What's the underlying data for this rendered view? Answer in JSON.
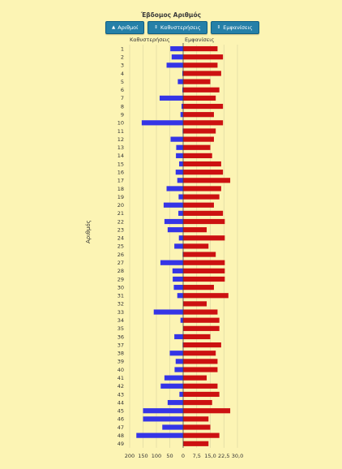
{
  "title": "Έβδομος Αριθμός",
  "buttons": {
    "numbers": {
      "label": "Αριθμοί",
      "icon": "sort-up-icon"
    },
    "delays": {
      "label": "Καθυστερήσεις",
      "icon": "sort-icon"
    },
    "appearances": {
      "label": "Εμφανίσεις",
      "icon": "sort-icon"
    }
  },
  "colors": {
    "delays": "#3535e6",
    "appearances": "#cc1111",
    "background": "#fcf4b4",
    "button": "#2580a8"
  },
  "chart_data": {
    "type": "bar",
    "orientation": "horizontal",
    "ylabel": "Αριθμός",
    "categories": [
      "1",
      "2",
      "3",
      "4",
      "5",
      "6",
      "7",
      "8",
      "9",
      "10",
      "11",
      "12",
      "13",
      "14",
      "15",
      "16",
      "17",
      "18",
      "19",
      "20",
      "21",
      "22",
      "23",
      "24",
      "25",
      "26",
      "27",
      "28",
      "29",
      "30",
      "31",
      "32",
      "33",
      "34",
      "35",
      "36",
      "37",
      "38",
      "39",
      "40",
      "41",
      "42",
      "43",
      "44",
      "45",
      "46",
      "47",
      "48",
      "49"
    ],
    "series": [
      {
        "name": "Καθυστερήσεις",
        "axis_ticks": [
          "200",
          "150",
          "100",
          "50",
          "0"
        ],
        "xlim": [
          0,
          200
        ],
        "values": [
          48,
          43,
          62,
          3,
          20,
          3,
          88,
          6,
          10,
          155,
          2,
          47,
          26,
          27,
          15,
          28,
          22,
          62,
          17,
          73,
          18,
          70,
          58,
          16,
          33,
          2,
          85,
          40,
          39,
          35,
          22,
          0,
          110,
          10,
          0,
          33,
          2,
          50,
          28,
          32,
          70,
          84,
          14,
          58,
          150,
          150,
          78,
          175,
          0
        ]
      },
      {
        "name": "Εμφανίσεις",
        "axis_ticks": [
          "0",
          "7,5",
          "15,0",
          "22,5",
          "30,0"
        ],
        "xlim": [
          0,
          30
        ],
        "values": [
          19,
          22,
          19,
          21,
          15,
          20,
          18,
          22,
          17,
          22,
          18,
          17,
          15,
          16,
          21,
          22,
          26,
          21,
          20,
          17,
          22,
          23,
          13,
          23,
          14,
          18,
          23,
          23,
          23,
          17,
          25,
          13,
          19,
          20,
          20,
          15,
          21,
          18,
          19,
          19,
          13,
          19,
          20,
          16,
          26,
          14,
          15,
          20,
          14
        ]
      }
    ]
  }
}
